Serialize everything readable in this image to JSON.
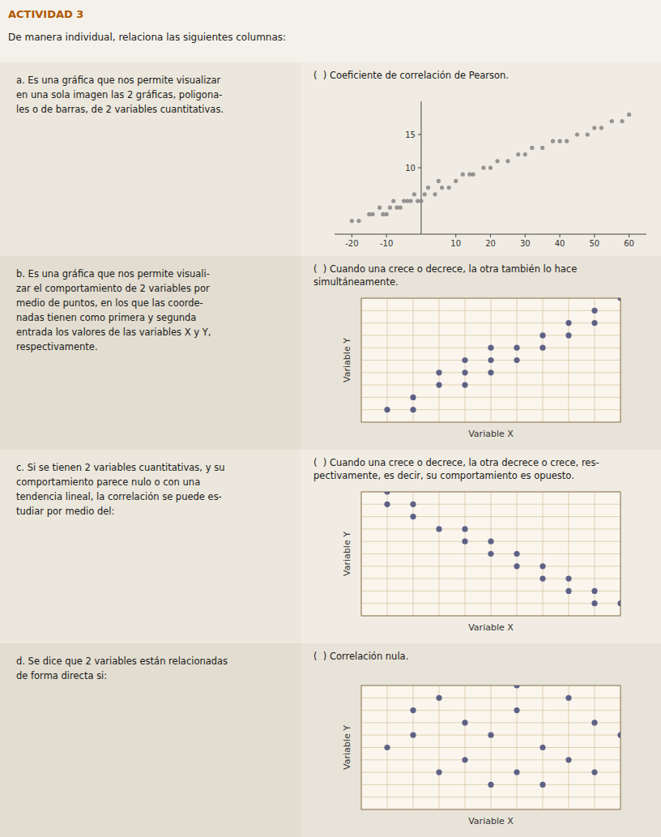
{
  "title": "ACTIVIDAD 3",
  "subtitle": "De manera individual, relaciona las siguientes columnas:",
  "chart_data": [
    {
      "type": "scatter",
      "annotations": [
        "a. Es una gráfica que nos permite visualizar\nen una sola imagen las 2 gráficas, poligona-\nles o de barras, de 2 variables cuantitativas.",
        "(  ) Coeficiente de correlación de Pearson."
      ],
      "x": [
        -20,
        -18,
        -15,
        -14,
        -12,
        -11,
        -10,
        -9,
        -8,
        -7,
        -6,
        -5,
        -4,
        -3,
        -2,
        -1,
        0,
        1,
        2,
        4,
        5,
        6,
        8,
        10,
        12,
        14,
        15,
        18,
        20,
        22,
        25,
        28,
        30,
        32,
        35,
        38,
        40,
        42,
        45,
        48,
        50,
        52,
        55,
        58,
        60
      ],
      "y": [
        2,
        2,
        3,
        3,
        4,
        3,
        3,
        4,
        5,
        4,
        4,
        5,
        5,
        5,
        6,
        5,
        5,
        6,
        7,
        6,
        8,
        7,
        7,
        8,
        9,
        9,
        9,
        10,
        10,
        11,
        11,
        12,
        12,
        13,
        13,
        14,
        14,
        14,
        15,
        15,
        16,
        16,
        17,
        17,
        18
      ],
      "xlim": [
        -25,
        65
      ],
      "ylim": [
        0,
        20
      ],
      "xticks": [
        -20,
        -10,
        10,
        20,
        30,
        40,
        50,
        60
      ],
      "yticks": [
        10,
        15
      ],
      "color": "#888888"
    },
    {
      "type": "scatter",
      "annotations": [
        "b. Es una gráfica que nos permite visuali-\nzar el comportamiento de 2 variables por\nmedio de puntos, en los que las coorde-\nnadas tienen como primera y segunda\nentrada los valores de las variables X y Y,\nrespectivamente.",
        "(  ) Cuando una crece o decrece, la otra también lo hace\nsimultáneamente."
      ],
      "x": [
        1,
        2,
        2,
        3,
        3,
        4,
        4,
        4,
        5,
        5,
        5,
        6,
        6,
        7,
        7,
        8,
        8,
        9,
        9,
        10
      ],
      "y": [
        1,
        1,
        2,
        3,
        4,
        3,
        4,
        5,
        4,
        5,
        6,
        5,
        6,
        6,
        7,
        7,
        8,
        8,
        9,
        10
      ],
      "xlabel": "Variable X",
      "ylabel": "Variable Y",
      "xlim": [
        0,
        10
      ],
      "ylim": [
        0,
        10
      ],
      "xticks": [
        0,
        1,
        2,
        3,
        4,
        5,
        6,
        7,
        8,
        9,
        10
      ],
      "yticks": [
        0,
        1,
        2,
        3,
        4,
        5,
        6,
        7,
        8,
        9,
        10
      ],
      "grid": true,
      "tick_labels": false,
      "color": "#4a4e7a"
    },
    {
      "type": "scatter",
      "annotations": [
        "c. Si se tienen 2 variables cuantitativas, y su\ncomportamiento parece nulo o con una\ntendencia lineal, la correlación se puede es-\ntudiar por medio del:",
        "(  ) Cuando una crece o decrece, la otra decrece o crece, res-\npectivamente, es decir, su comportamiento es opuesto."
      ],
      "x": [
        1,
        1,
        2,
        2,
        3,
        4,
        4,
        5,
        5,
        6,
        6,
        7,
        7,
        8,
        8,
        9,
        9,
        10
      ],
      "y": [
        10,
        9,
        9,
        8,
        7,
        7,
        6,
        6,
        5,
        5,
        4,
        4,
        3,
        3,
        2,
        2,
        1,
        1
      ],
      "xlabel": "Variable X",
      "ylabel": "Variable Y",
      "xlim": [
        0,
        10
      ],
      "ylim": [
        0,
        10
      ],
      "xticks": [
        0,
        1,
        2,
        3,
        4,
        5,
        6,
        7,
        8,
        9,
        10
      ],
      "yticks": [
        0,
        1,
        2,
        3,
        4,
        5,
        6,
        7,
        8,
        9,
        10
      ],
      "grid": true,
      "tick_labels": false,
      "color": "#4a4e7a"
    },
    {
      "type": "scatter",
      "annotations": [
        "d. Se dice que 2 variables están relacionadas\nde forma directa si:",
        "(  ) Correlación nula."
      ],
      "x": [
        1,
        2,
        3,
        3,
        4,
        4,
        5,
        5,
        6,
        6,
        7,
        7,
        8,
        8,
        9,
        9,
        10,
        2,
        6
      ],
      "y": [
        5,
        8,
        3,
        9,
        7,
        4,
        6,
        2,
        8,
        3,
        5,
        2,
        9,
        4,
        7,
        3,
        6,
        6,
        10
      ],
      "xlabel": "Variable X",
      "ylabel": "Variable Y",
      "xlim": [
        0,
        10
      ],
      "ylim": [
        0,
        10
      ],
      "xticks": [
        0,
        1,
        2,
        3,
        4,
        5,
        6,
        7,
        8,
        9,
        10
      ],
      "yticks": [
        0,
        1,
        2,
        3,
        4,
        5,
        6,
        7,
        8,
        9,
        10
      ],
      "grid": true,
      "tick_labels": false,
      "color": "#4a4e7a"
    }
  ]
}
